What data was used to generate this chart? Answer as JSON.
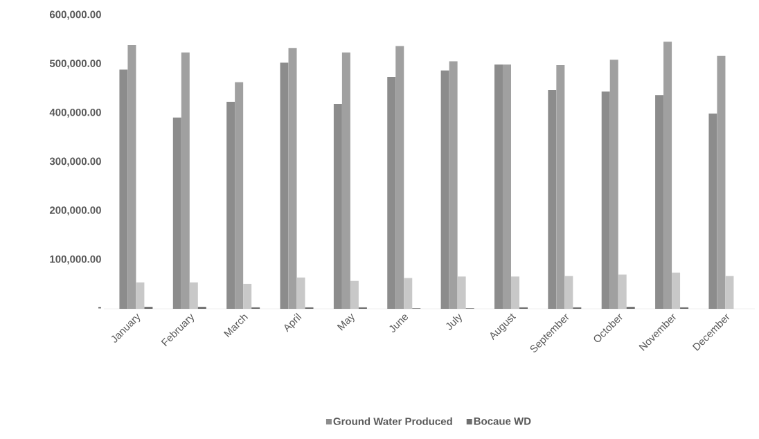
{
  "chart_data": {
    "type": "bar",
    "categories": [
      "January",
      "February",
      "March",
      "April",
      "May",
      "June",
      "July",
      "August",
      "September",
      "October",
      "November",
      "December"
    ],
    "series": [
      {
        "name": "Ground Water Produced",
        "color": "#8c8c8c",
        "values": [
          489000,
          391000,
          423000,
          503000,
          419000,
          474000,
          487000,
          499000,
          447000,
          444000,
          437000,
          399000
        ]
      },
      {
        "color": "#a0a0a0",
        "values": [
          539000,
          524000,
          463000,
          533000,
          524000,
          537000,
          506000,
          499000,
          498000,
          509000,
          546000,
          517000
        ]
      },
      {
        "color": "#c8c8c8",
        "values": [
          54000,
          54000,
          51000,
          64000,
          57000,
          63000,
          66000,
          66000,
          67000,
          70000,
          74000,
          67000
        ]
      },
      {
        "name": "Bocaue WD",
        "color": "#6e6e6e",
        "values": [
          4000,
          4000,
          3000,
          3000,
          3000,
          1000,
          1000,
          3000,
          3000,
          4000,
          3000,
          null
        ]
      }
    ],
    "ylim": [
      0,
      600000
    ],
    "yticks": [
      {
        "value": 0,
        "label": "-"
      },
      {
        "value": 100000,
        "label": "100,000.00"
      },
      {
        "value": 200000,
        "label": "200,000.00"
      },
      {
        "value": 300000,
        "label": "300,000.00"
      },
      {
        "value": 400000,
        "label": "400,000.00"
      },
      {
        "value": 500000,
        "label": "500,000.00"
      },
      {
        "value": 600000,
        "label": "600,000.00"
      }
    ],
    "legend": "bottom"
  }
}
